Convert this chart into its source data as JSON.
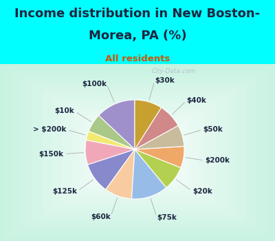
{
  "title_line1": "Income distribution in New Boston-",
  "title_line2": "Morea, PA (%)",
  "subtitle": "All residents",
  "bg_color": "#00FFFF",
  "labels": [
    "$100k",
    "$10k",
    "> $200k",
    "$150k",
    "$125k",
    "$60k",
    "$75k",
    "$20k",
    "$200k",
    "$50k",
    "$40k",
    "$30k"
  ],
  "values": [
    13,
    6,
    3,
    8,
    10,
    9,
    12,
    8,
    7,
    7,
    8,
    9
  ],
  "colors": [
    "#9f90cc",
    "#aac888",
    "#f2ea70",
    "#f0a8b8",
    "#8888cc",
    "#f8cca0",
    "#98bce8",
    "#b4d050",
    "#f0a868",
    "#c8bc9c",
    "#d08888",
    "#c8a030"
  ],
  "watermark": "City-Data.com",
  "title_fontsize": 13,
  "subtitle_fontsize": 9.5,
  "label_fontsize": 7.5
}
